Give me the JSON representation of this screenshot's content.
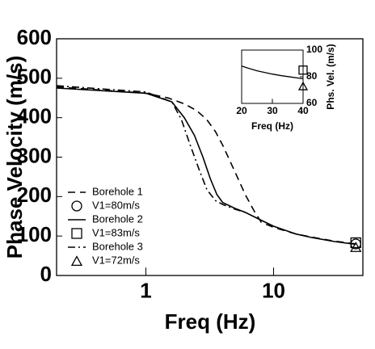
{
  "chart_data": [
    {
      "type": "line",
      "xlabel": "Freq (Hz)",
      "ylabel": "Phase Velocity (m/s)",
      "xscale": "log",
      "xlim": [
        0.2,
        50
      ],
      "xticks": [
        1,
        10
      ],
      "ylim": [
        0,
        600
      ],
      "yticks": [
        0,
        100,
        200,
        300,
        400,
        500,
        600
      ],
      "legend": "lower left",
      "series": [
        {
          "name": "Borehole 1",
          "kind": "line",
          "dash": "dashed",
          "color": "#000",
          "x": [
            0.2,
            1,
            1.5,
            2,
            2.5,
            3,
            3.5,
            4,
            5,
            6,
            7,
            8,
            10,
            15,
            20,
            30,
            44
          ],
          "values": [
            478,
            462,
            450,
            435,
            418,
            395,
            365,
            330,
            262,
            205,
            165,
            135,
            122,
            105,
            97,
            87,
            80
          ]
        },
        {
          "name": "V1=80m/s",
          "kind": "marker",
          "marker": "circle",
          "color": "#000",
          "x": [
            44
          ],
          "values": [
            80
          ]
        },
        {
          "name": "Borehole 2",
          "kind": "line",
          "dash": "solid",
          "color": "#000",
          "x": [
            0.2,
            1,
            1.6,
            2,
            2.4,
            2.8,
            3.2,
            3.6,
            4,
            5,
            6,
            8,
            10,
            15,
            20,
            30,
            44
          ],
          "values": [
            475,
            462,
            440,
            400,
            355,
            300,
            245,
            205,
            185,
            170,
            160,
            140,
            125,
            105,
            96,
            86,
            79
          ]
        },
        {
          "name": "V1=83m/s",
          "kind": "marker",
          "marker": "square",
          "color": "#000",
          "x": [
            44
          ],
          "values": [
            83
          ]
        },
        {
          "name": "Borehole 3",
          "kind": "line",
          "dash": "dashdot",
          "color": "#000",
          "x": [
            0.2,
            1,
            1.6,
            1.9,
            2.2,
            2.6,
            3,
            3.5,
            4,
            5,
            6
          ],
          "values": [
            481,
            465,
            440,
            395,
            335,
            270,
            218,
            190,
            180,
            168,
            160
          ]
        },
        {
          "name": "V1=72m/s",
          "kind": "marker",
          "marker": "triangle",
          "color": "#000",
          "x": [
            44
          ],
          "values": [
            72
          ]
        }
      ]
    },
    {
      "type": "line",
      "xlabel": "Freq (Hz)",
      "ylabel": "Phs. Vel. (m/s)",
      "xscale": "linear",
      "xlim": [
        20,
        40
      ],
      "xticks": [
        20,
        30,
        40
      ],
      "ylim": [
        60,
        100
      ],
      "yticks": [
        60,
        80,
        100
      ],
      "yaxis_side": "right",
      "series": [
        {
          "kind": "line",
          "dash": "solid",
          "color": "#000",
          "x": [
            20,
            22,
            25,
            28,
            30,
            33,
            36,
            40
          ],
          "values": [
            88,
            86.5,
            84.5,
            83,
            82,
            80.8,
            79.8,
            78.5
          ]
        },
        {
          "kind": "marker",
          "marker": "square",
          "color": "#000",
          "x": [
            40
          ],
          "values": [
            85
          ]
        },
        {
          "kind": "marker",
          "marker": "triangle",
          "color": "#000",
          "x": [
            40
          ],
          "values": [
            73
          ]
        }
      ]
    }
  ]
}
